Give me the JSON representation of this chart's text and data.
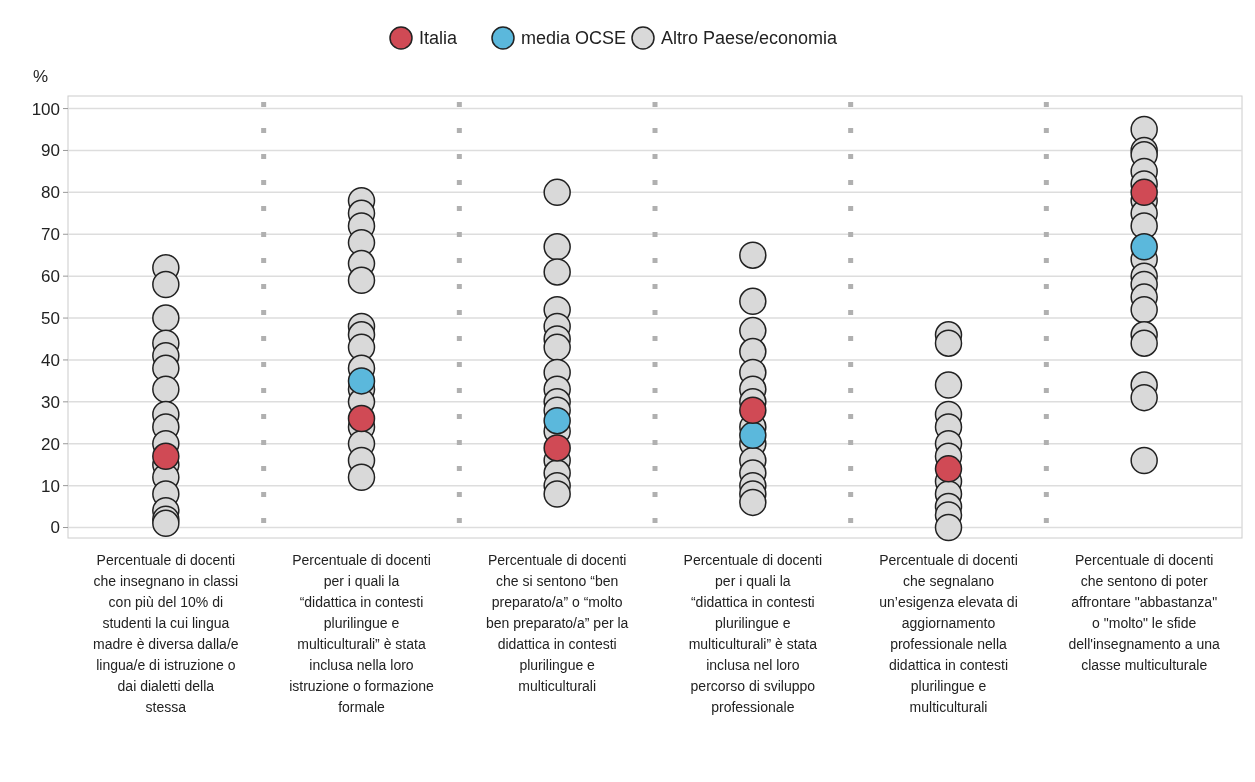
{
  "chart_data": {
    "type": "scatter",
    "ylabel": "%",
    "categories": [
      "Percentuale di docenti che insegnano in classi con più del 10% di studenti la cui lingua madre è diversa dalla/e lingua/e di istruzione o dai dialetti della stessa",
      "Percentuale di docenti per i quali la “didattica in contesti plurilingue e multiculturali” è stata inclusa nella loro istruzione o formazione formale",
      "Percentuale di docenti che si sentono “ben preparato/a” o “molto ben preparato/a” per la didattica in contesti plurilingue e multiculturali",
      "Percentuale di docenti per i quali la “didattica in contesti plurilingue e multiculturali” è stata inclusa nel loro percorso di sviluppo professionale",
      "Percentuale di docenti che segnalano un’esigenza elevata di aggiornamento professionale nella didattica in contesti plurilingue e multiculturali",
      "Percentuale di docenti che sentono di poter affrontare \"abbastanza\" o \"molto\" le sfide dell'insegnamento a una classe multiculturale"
    ],
    "ylim": [
      -2.5,
      103
    ],
    "yticks": [
      0,
      10,
      20,
      30,
      40,
      50,
      60,
      70,
      80,
      90,
      100
    ],
    "grid": "y",
    "legend": "top",
    "marker": "circle",
    "series": [
      {
        "name": "Altro Paese/economia",
        "color": "#d9d9d9",
        "x": [
          "Percentuale di docenti che insegnano in classi con più del 10% di studenti la cui lingua madre è diversa dalla/e lingua/e di istruzione o dai dialetti della stessa",
          "Percentuale di docenti che insegnano in classi con più del 10% di studenti la cui lingua madre è diversa dalla/e lingua/e di istruzione o dai dialetti della stessa",
          "Percentuale di docenti che insegnano in classi con più del 10% di studenti la cui lingua madre è diversa dalla/e lingua/e di istruzione o dai dialetti della stessa",
          "Percentuale di docenti che insegnano in classi con più del 10% di studenti la cui lingua madre è diversa dalla/e lingua/e di istruzione o dai dialetti della stessa",
          "Percentuale di docenti che insegnano in classi con più del 10% di studenti la cui lingua madre è diversa dalla/e lingua/e di istruzione o dai dialetti della stessa",
          "Percentuale di docenti che insegnano in classi con più del 10% di studenti la cui lingua madre è diversa dalla/e lingua/e di istruzione o dai dialetti della stessa",
          "Percentuale di docenti che insegnano in classi con più del 10% di studenti la cui lingua madre è diversa dalla/e lingua/e di istruzione o dai dialetti della stessa",
          "Percentuale di docenti che insegnano in classi con più del 10% di studenti la cui lingua madre è diversa dalla/e lingua/e di istruzione o dai dialetti della stessa",
          "Percentuale di docenti che insegnano in classi con più del 10% di studenti la cui lingua madre è diversa dalla/e lingua/e di istruzione o dai dialetti della stessa",
          "Percentuale di docenti che insegnano in classi con più del 10% di studenti la cui lingua madre è diversa dalla/e lingua/e di istruzione o dai dialetti della stessa",
          "Percentuale di docenti che insegnano in classi con più del 10% di studenti la cui lingua madre è diversa dalla/e lingua/e di istruzione o dai dialetti della stessa",
          "Percentuale di docenti che insegnano in classi con più del 10% di studenti la cui lingua madre è diversa dalla/e lingua/e di istruzione o dai dialetti della stessa",
          "Percentuale di docenti che insegnano in classi con più del 10% di studenti la cui lingua madre è diversa dalla/e lingua/e di istruzione o dai dialetti della stessa",
          "Percentuale di docenti che insegnano in classi con più del 10% di studenti la cui lingua madre è diversa dalla/e lingua/e di istruzione o dai dialetti della stessa",
          "Percentuale di docenti che insegnano in classi con più del 10% di studenti la cui lingua madre è diversa dalla/e lingua/e di istruzione o dai dialetti della stessa",
          "Percentuale di docenti che insegnano in classi con più del 10% di studenti la cui lingua madre è diversa dalla/e lingua/e di istruzione o dai dialetti della stessa",
          "Percentuale di docenti per i quali la “didattica in contesti plurilingue e multiculturali” è stata inclusa nella loro istruzione o formazione formale",
          "Percentuale di docenti per i quali la “didattica in contesti plurilingue e multiculturali” è stata inclusa nella loro istruzione o formazione formale",
          "Percentuale di docenti per i quali la “didattica in contesti plurilingue e multiculturali” è stata inclusa nella loro istruzione o formazione formale",
          "Percentuale di docenti per i quali la “didattica in contesti plurilingue e multiculturali” è stata inclusa nella loro istruzione o formazione formale",
          "Percentuale di docenti per i quali la “didattica in contesti plurilingue e multiculturali” è stata inclusa nella loro istruzione o formazione formale",
          "Percentuale di docenti per i quali la “didattica in contesti plurilingue e multiculturali” è stata inclusa nella loro istruzione o formazione formale",
          "Percentuale di docenti per i quali la “didattica in contesti plurilingue e multiculturali” è stata inclusa nella loro istruzione o formazione formale",
          "Percentuale di docenti per i quali la “didattica in contesti plurilingue e multiculturali” è stata inclusa nella loro istruzione o formazione formale",
          "Percentuale di docenti per i quali la “didattica in contesti plurilingue e multiculturali” è stata inclusa nella loro istruzione o formazione formale",
          "Percentuale di docenti per i quali la “didattica in contesti plurilingue e multiculturali” è stata inclusa nella loro istruzione o formazione formale",
          "Percentuale di docenti per i quali la “didattica in contesti plurilingue e multiculturali” è stata inclusa nella loro istruzione o formazione formale",
          "Percentuale di docenti per i quali la “didattica in contesti plurilingue e multiculturali” è stata inclusa nella loro istruzione o formazione formale",
          "Percentuale di docenti per i quali la “didattica in contesti plurilingue e multiculturali” è stata inclusa nella loro istruzione o formazione formale",
          "Percentuale di docenti per i quali la “didattica in contesti plurilingue e multiculturali” è stata inclusa nella loro istruzione o formazione formale",
          "Percentuale di docenti per i quali la “didattica in contesti plurilingue e multiculturali” è stata inclusa nella loro istruzione o formazione formale",
          "Percentuale di docenti per i quali la “didattica in contesti plurilingue e multiculturali” è stata inclusa nella loro istruzione o formazione formale",
          "Percentuale di docenti che si sentono “ben preparato/a” o “molto ben preparato/a” per la didattica in contesti plurilingue e multiculturali",
          "Percentuale di docenti che si sentono “ben preparato/a” o “molto ben preparato/a” per la didattica in contesti plurilingue e multiculturali",
          "Percentuale di docenti che si sentono “ben preparato/a” o “molto ben preparato/a” per la didattica in contesti plurilingue e multiculturali",
          "Percentuale di docenti che si sentono “ben preparato/a” o “molto ben preparato/a” per la didattica in contesti plurilingue e multiculturali",
          "Percentuale di docenti che si sentono “ben preparato/a” o “molto ben preparato/a” per la didattica in contesti plurilingue e multiculturali",
          "Percentuale di docenti che si sentono “ben preparato/a” o “molto ben preparato/a” per la didattica in contesti plurilingue e multiculturali",
          "Percentuale di docenti che si sentono “ben preparato/a” o “molto ben preparato/a” per la didattica in contesti plurilingue e multiculturali",
          "Percentuale di docenti che si sentono “ben preparato/a” o “molto ben preparato/a” per la didattica in contesti plurilingue e multiculturali",
          "Percentuale di docenti che si sentono “ben preparato/a” o “molto ben preparato/a” per la didattica in contesti plurilingue e multiculturali",
          "Percentuale di docenti che si sentono “ben preparato/a” o “molto ben preparato/a” per la didattica in contesti plurilingue e multiculturali",
          "Percentuale di docenti che si sentono “ben preparato/a” o “molto ben preparato/a” per la didattica in contesti plurilingue e multiculturali",
          "Percentuale di docenti che si sentono “ben preparato/a” o “molto ben preparato/a” per la didattica in contesti plurilingue e multiculturali",
          "Percentuale di docenti che si sentono “ben preparato/a” o “molto ben preparato/a” per la didattica in contesti plurilingue e multiculturali",
          "Percentuale di docenti che si sentono “ben preparato/a” o “molto ben preparato/a” per la didattica in contesti plurilingue e multiculturali",
          "Percentuale di docenti che si sentono “ben preparato/a” o “molto ben preparato/a” per la didattica in contesti plurilingue e multiculturali",
          "Percentuale di docenti che si sentono “ben preparato/a” o “molto ben preparato/a” per la didattica in contesti plurilingue e multiculturali",
          "Percentuale di docenti per i quali la “didattica in contesti plurilingue e multiculturali” è stata inclusa nel loro percorso di sviluppo professionale",
          "Percentuale di docenti per i quali la “didattica in contesti plurilingue e multiculturali” è stata inclusa nel loro percorso di sviluppo professionale",
          "Percentuale di docenti per i quali la “didattica in contesti plurilingue e multiculturali” è stata inclusa nel loro percorso di sviluppo professionale",
          "Percentuale di docenti per i quali la “didattica in contesti plurilingue e multiculturali” è stata inclusa nel loro percorso di sviluppo professionale",
          "Percentuale di docenti per i quali la “didattica in contesti plurilingue e multiculturali” è stata inclusa nel loro percorso di sviluppo professionale",
          "Percentuale di docenti per i quali la “didattica in contesti plurilingue e multiculturali” è stata inclusa nel loro percorso di sviluppo professionale",
          "Percentuale di docenti per i quali la “didattica in contesti plurilingue e multiculturali” è stata inclusa nel loro percorso di sviluppo professionale",
          "Percentuale di docenti per i quali la “didattica in contesti plurilingue e multiculturali” è stata inclusa nel loro percorso di sviluppo professionale",
          "Percentuale di docenti per i quali la “didattica in contesti plurilingue e multiculturali” è stata inclusa nel loro percorso di sviluppo professionale",
          "Percentuale di docenti per i quali la “didattica in contesti plurilingue e multiculturali” è stata inclusa nel loro percorso di sviluppo professionale",
          "Percentuale di docenti per i quali la “didattica in contesti plurilingue e multiculturali” è stata inclusa nel loro percorso di sviluppo professionale",
          "Percentuale di docenti per i quali la “didattica in contesti plurilingue e multiculturali” è stata inclusa nel loro percorso di sviluppo professionale",
          "Percentuale di docenti per i quali la “didattica in contesti plurilingue e multiculturali” è stata inclusa nel loro percorso di sviluppo professionale",
          "Percentuale di docenti per i quali la “didattica in contesti plurilingue e multiculturali” è stata inclusa nel loro percorso di sviluppo professionale",
          "Percentuale di docenti per i quali la “didattica in contesti plurilingue e multiculturali” è stata inclusa nel loro percorso di sviluppo professionale",
          "Percentuale di docenti che segnalano un’esigenza elevata di aggiornamento professionale nella didattica in contesti plurilingue e multiculturali",
          "Percentuale di docenti che segnalano un’esigenza elevata di aggiornamento professionale nella didattica in contesti plurilingue e multiculturali",
          "Percentuale di docenti che segnalano un’esigenza elevata di aggiornamento professionale nella didattica in contesti plurilingue e multiculturali",
          "Percentuale di docenti che segnalano un’esigenza elevata di aggiornamento professionale nella didattica in contesti plurilingue e multiculturali",
          "Percentuale di docenti che segnalano un’esigenza elevata di aggiornamento professionale nella didattica in contesti plurilingue e multiculturali",
          "Percentuale di docenti che segnalano un’esigenza elevata di aggiornamento professionale nella didattica in contesti plurilingue e multiculturali",
          "Percentuale di docenti che segnalano un’esigenza elevata di aggiornamento professionale nella didattica in contesti plurilingue e multiculturali",
          "Percentuale di docenti che segnalano un’esigenza elevata di aggiornamento professionale nella didattica in contesti plurilingue e multiculturali",
          "Percentuale di docenti che segnalano un’esigenza elevata di aggiornamento professionale nella didattica in contesti plurilingue e multiculturali",
          "Percentuale di docenti che segnalano un’esigenza elevata di aggiornamento professionale nella didattica in contesti plurilingue e multiculturali",
          "Percentuale di docenti che segnalano un’esigenza elevata di aggiornamento professionale nella didattica in contesti plurilingue e multiculturali",
          "Percentuale di docenti che segnalano un’esigenza elevata di aggiornamento professionale nella didattica in contesti plurilingue e multiculturali",
          "Percentuale di docenti che sentono di poter affrontare \"abbastanza\" o \"molto\" le sfide dell'insegnamento a una classe multiculturale",
          "Percentuale di docenti che sentono di poter affrontare \"abbastanza\" o \"molto\" le sfide dell'insegnamento a una classe multiculturale",
          "Percentuale di docenti che sentono di poter affrontare \"abbastanza\" o \"molto\" le sfide dell'insegnamento a una classe multiculturale",
          "Percentuale di docenti che sentono di poter affrontare \"abbastanza\" o \"molto\" le sfide dell'insegnamento a una classe multiculturale",
          "Percentuale di docenti che sentono di poter affrontare \"abbastanza\" o \"molto\" le sfide dell'insegnamento a una classe multiculturale",
          "Percentuale di docenti che sentono di poter affrontare \"abbastanza\" o \"molto\" le sfide dell'insegnamento a una classe multiculturale",
          "Percentuale di docenti che sentono di poter affrontare \"abbastanza\" o \"molto\" le sfide dell'insegnamento a una classe multiculturale",
          "Percentuale di docenti che sentono di poter affrontare \"abbastanza\" o \"molto\" le sfide dell'insegnamento a una classe multiculturale",
          "Percentuale di docenti che sentono di poter affrontare \"abbastanza\" o \"molto\" le sfide dell'insegnamento a una classe multiculturale",
          "Percentuale di docenti che sentono di poter affrontare \"abbastanza\" o \"molto\" le sfide dell'insegnamento a una classe multiculturale",
          "Percentuale di docenti che sentono di poter affrontare \"abbastanza\" o \"molto\" le sfide dell'insegnamento a una classe multiculturale",
          "Percentuale di docenti che sentono di poter affrontare \"abbastanza\" o \"molto\" le sfide dell'insegnamento a una classe multiculturale",
          "Percentuale di docenti che sentono di poter affrontare \"abbastanza\" o \"molto\" le sfide dell'insegnamento a una classe multiculturale",
          "Percentuale di docenti che sentono di poter affrontare \"abbastanza\" o \"molto\" le sfide dell'insegnamento a una classe multiculturale",
          "Percentuale di docenti che sentono di poter affrontare \"abbastanza\" o \"molto\" le sfide dell'insegnamento a una classe multiculturale",
          "Percentuale di docenti che sentono di poter affrontare \"abbastanza\" o \"molto\" le sfide dell'insegnamento a una classe multiculturale",
          "Percentuale di docenti che sentono di poter affrontare \"abbastanza\" o \"molto\" le sfide dell'insegnamento a una classe multiculturale",
          "Percentuale di docenti che sentono di poter affrontare \"abbastanza\" o \"molto\" le sfide dell'insegnamento a una classe multiculturale",
          "Percentuale di docenti che sentono di poter affrontare \"abbastanza\" o \"molto\" le sfide dell'insegnamento a una classe multiculturale"
        ],
        "values": [
          62,
          58,
          50,
          44,
          41,
          38,
          33,
          27,
          24,
          20,
          15,
          12,
          8,
          4,
          2,
          1,
          78,
          75,
          72,
          68,
          63,
          59,
          48,
          46,
          43,
          38,
          33,
          30,
          24,
          20,
          16,
          12,
          80,
          67,
          61,
          52,
          48,
          45,
          43,
          37,
          33,
          30,
          28,
          23,
          16,
          13,
          10,
          8,
          65,
          54,
          47,
          42,
          37,
          33,
          30,
          null,
          24,
          20,
          16,
          13,
          10,
          8,
          6,
          46,
          44,
          34,
          27,
          24,
          20,
          17,
          11,
          8,
          5,
          3,
          0,
          95,
          90,
          89,
          85,
          82,
          78,
          75,
          72,
          null,
          64,
          60,
          58,
          55,
          52,
          46,
          44,
          34,
          31,
          16
        ]
      },
      {
        "name": "media OCSE",
        "color": "#5bb8dc",
        "values": [
          null,
          35,
          25.5,
          22,
          null,
          67
        ]
      },
      {
        "name": "Italia",
        "color": "#d04a55",
        "values": [
          17,
          26,
          19,
          28,
          14,
          80
        ]
      }
    ]
  }
}
